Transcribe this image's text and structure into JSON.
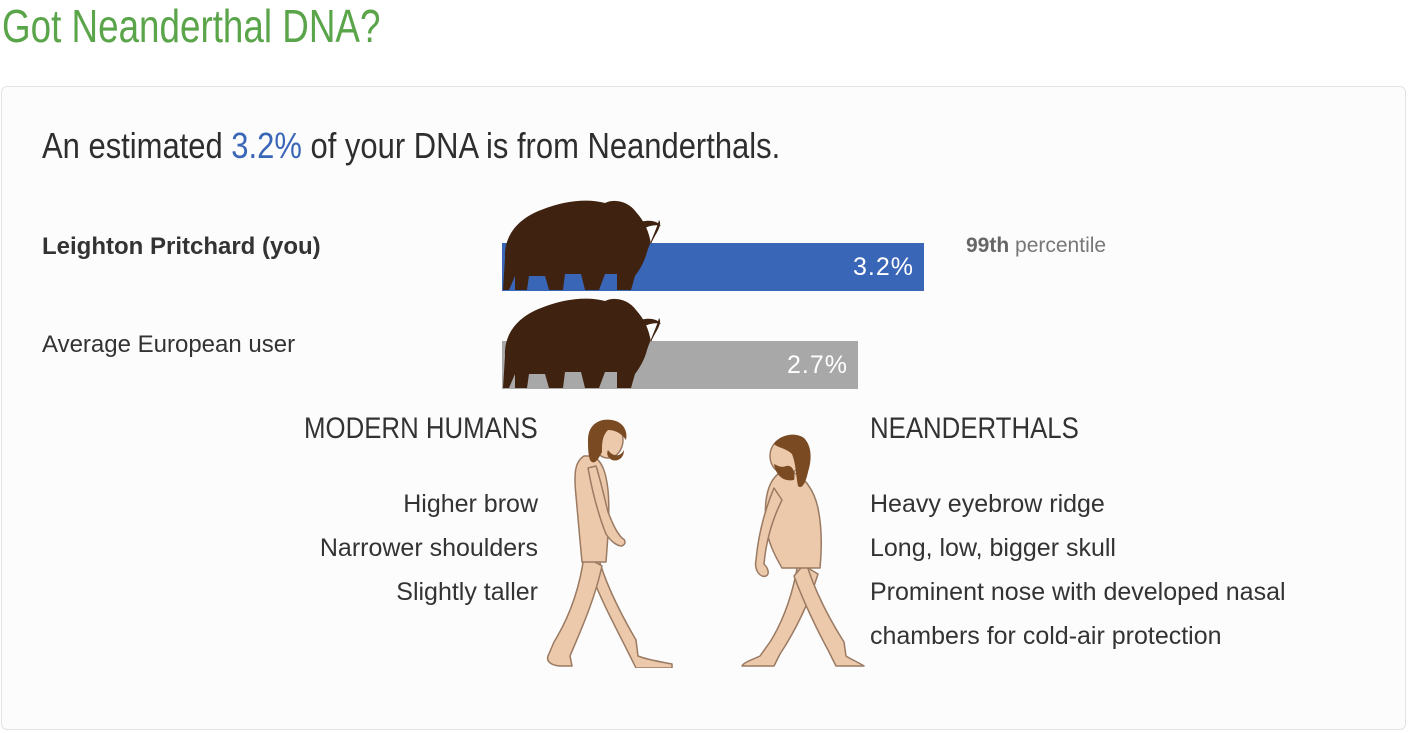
{
  "page": {
    "title": "Got Neanderthal DNA?"
  },
  "summary": {
    "prefix": "An estimated ",
    "percent": "3.2%",
    "suffix": " of your DNA is from Neanderthals."
  },
  "comparison": {
    "rows": [
      {
        "label": "Leighton Pritchard (you)",
        "value": 3.2,
        "value_label": "3.2%",
        "color": "#3a66b8"
      },
      {
        "label": "Average European user",
        "value": 2.7,
        "value_label": "2.7%",
        "color": "#a8a8a8"
      }
    ],
    "percentile": {
      "rank": "99th",
      "text": " percentile"
    }
  },
  "modern_humans": {
    "heading": "MODERN HUMANS",
    "traits": [
      "Higher brow",
      "Narrower shoulders",
      "Slightly taller"
    ]
  },
  "neanderthals": {
    "heading": "NEANDERTHALS",
    "traits": [
      "Heavy eyebrow ridge",
      "Long, low, bigger skull",
      "Prominent nose with developed nasal",
      "chambers for cold-air protection"
    ]
  },
  "colors": {
    "title_green": "#5aa54a",
    "accent_blue": "#3a66b8",
    "bar_grey": "#a8a8a8",
    "mammoth_brown": "#3f2310",
    "skin": "#ecc9ab"
  },
  "icons": [
    "mammoth-icon",
    "modern-human-icon",
    "neanderthal-icon"
  ]
}
